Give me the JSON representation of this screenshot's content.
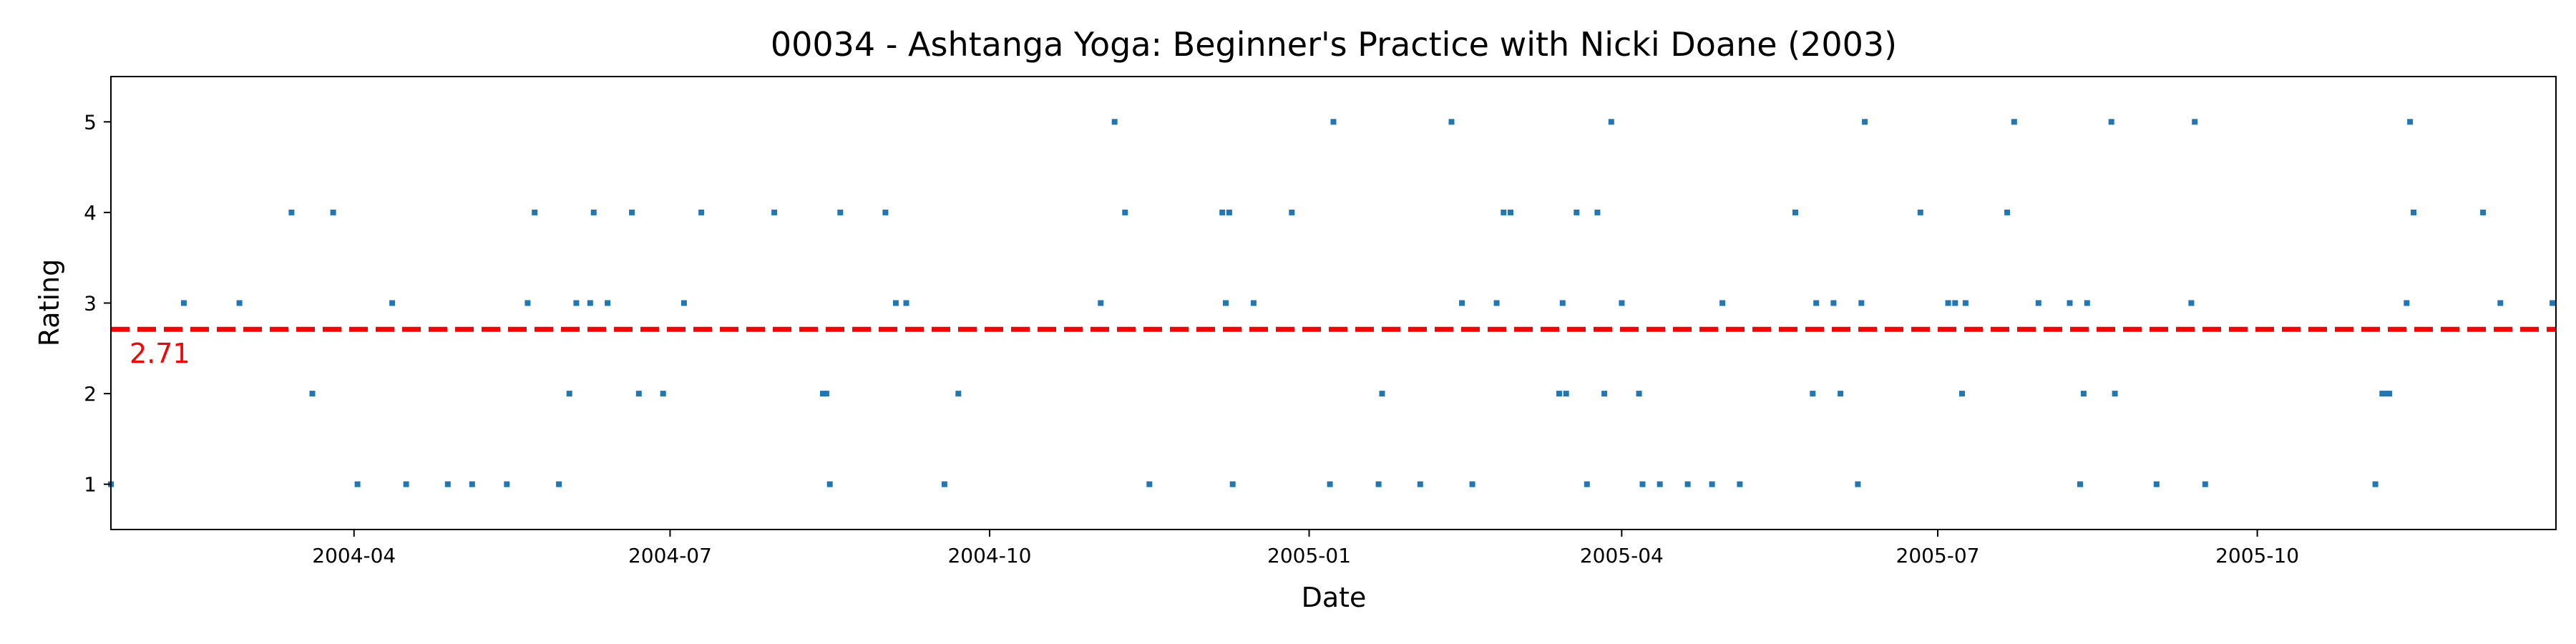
{
  "chart_data": {
    "type": "scatter",
    "title": "00034 - Ashtanga Yoga: Beginner's Practice with Nicki Doane (2003)",
    "xlabel": "Date",
    "ylabel": "Rating",
    "xlim": [
      "2004-01-22",
      "2005-12-26"
    ],
    "ylim": [
      0.5,
      5.5
    ],
    "x_ticks": [
      "2004-04",
      "2004-07",
      "2004-10",
      "2005-01",
      "2005-04",
      "2005-07",
      "2005-10"
    ],
    "y_ticks": [
      1,
      2,
      3,
      4,
      5
    ],
    "grid": false,
    "point_color": "#1f77b4",
    "mean_line": {
      "value": 2.71,
      "label": "2.71",
      "color": "#ff0000",
      "style": "dashed"
    },
    "series": [
      {
        "points": [
          {
            "x": "2004-01-22",
            "y": 1
          },
          {
            "x": "2004-02-12",
            "y": 3
          },
          {
            "x": "2004-02-28",
            "y": 3
          },
          {
            "x": "2004-03-14",
            "y": 4
          },
          {
            "x": "2004-03-20",
            "y": 2
          },
          {
            "x": "2004-03-26",
            "y": 4
          },
          {
            "x": "2004-04-02",
            "y": 1
          },
          {
            "x": "2004-04-12",
            "y": 3
          },
          {
            "x": "2004-04-16",
            "y": 1
          },
          {
            "x": "2004-04-28",
            "y": 1
          },
          {
            "x": "2004-05-05",
            "y": 1
          },
          {
            "x": "2004-05-15",
            "y": 1
          },
          {
            "x": "2004-05-21",
            "y": 3
          },
          {
            "x": "2004-05-23",
            "y": 4
          },
          {
            "x": "2004-05-30",
            "y": 1
          },
          {
            "x": "2004-06-02",
            "y": 2
          },
          {
            "x": "2004-06-04",
            "y": 3
          },
          {
            "x": "2004-06-08",
            "y": 3
          },
          {
            "x": "2004-06-09",
            "y": 4
          },
          {
            "x": "2004-06-13",
            "y": 3
          },
          {
            "x": "2004-06-20",
            "y": 4
          },
          {
            "x": "2004-06-22",
            "y": 2
          },
          {
            "x": "2004-06-29",
            "y": 2
          },
          {
            "x": "2004-07-05",
            "y": 3
          },
          {
            "x": "2004-07-10",
            "y": 4
          },
          {
            "x": "2004-07-31",
            "y": 4
          },
          {
            "x": "2004-08-14",
            "y": 2
          },
          {
            "x": "2004-08-15",
            "y": 2
          },
          {
            "x": "2004-08-16",
            "y": 1
          },
          {
            "x": "2004-08-19",
            "y": 4
          },
          {
            "x": "2004-09-01",
            "y": 4
          },
          {
            "x": "2004-09-04",
            "y": 3
          },
          {
            "x": "2004-09-07",
            "y": 3
          },
          {
            "x": "2004-09-18",
            "y": 1
          },
          {
            "x": "2004-09-22",
            "y": 2
          },
          {
            "x": "2004-11-02",
            "y": 3
          },
          {
            "x": "2004-11-06",
            "y": 5
          },
          {
            "x": "2004-11-09",
            "y": 4
          },
          {
            "x": "2004-11-16",
            "y": 1
          },
          {
            "x": "2004-12-07",
            "y": 4
          },
          {
            "x": "2004-12-08",
            "y": 3
          },
          {
            "x": "2004-12-09",
            "y": 4
          },
          {
            "x": "2004-12-10",
            "y": 1
          },
          {
            "x": "2004-12-16",
            "y": 3
          },
          {
            "x": "2004-12-27",
            "y": 4
          },
          {
            "x": "2005-01-07",
            "y": 1
          },
          {
            "x": "2005-01-08",
            "y": 5
          },
          {
            "x": "2005-01-21",
            "y": 1
          },
          {
            "x": "2005-01-22",
            "y": 2
          },
          {
            "x": "2005-02-02",
            "y": 1
          },
          {
            "x": "2005-02-11",
            "y": 5
          },
          {
            "x": "2005-02-14",
            "y": 3
          },
          {
            "x": "2005-02-17",
            "y": 1
          },
          {
            "x": "2005-02-24",
            "y": 3
          },
          {
            "x": "2005-02-26",
            "y": 4
          },
          {
            "x": "2005-02-28",
            "y": 4
          },
          {
            "x": "2005-03-14",
            "y": 2
          },
          {
            "x": "2005-03-15",
            "y": 3
          },
          {
            "x": "2005-03-16",
            "y": 2
          },
          {
            "x": "2005-03-19",
            "y": 4
          },
          {
            "x": "2005-03-22",
            "y": 1
          },
          {
            "x": "2005-03-25",
            "y": 4
          },
          {
            "x": "2005-03-27",
            "y": 2
          },
          {
            "x": "2005-03-29",
            "y": 5
          },
          {
            "x": "2005-04-01",
            "y": 3
          },
          {
            "x": "2005-04-06",
            "y": 2
          },
          {
            "x": "2005-04-07",
            "y": 1
          },
          {
            "x": "2005-04-12",
            "y": 1
          },
          {
            "x": "2005-04-20",
            "y": 1
          },
          {
            "x": "2005-04-27",
            "y": 1
          },
          {
            "x": "2005-04-30",
            "y": 3
          },
          {
            "x": "2005-05-05",
            "y": 1
          },
          {
            "x": "2005-05-21",
            "y": 4
          },
          {
            "x": "2005-05-26",
            "y": 2
          },
          {
            "x": "2005-05-27",
            "y": 3
          },
          {
            "x": "2005-06-01",
            "y": 3
          },
          {
            "x": "2005-06-03",
            "y": 2
          },
          {
            "x": "2005-06-08",
            "y": 1
          },
          {
            "x": "2005-06-09",
            "y": 3
          },
          {
            "x": "2005-06-10",
            "y": 5
          },
          {
            "x": "2005-06-26",
            "y": 4
          },
          {
            "x": "2005-07-04",
            "y": 3
          },
          {
            "x": "2005-07-06",
            "y": 3
          },
          {
            "x": "2005-07-08",
            "y": 2
          },
          {
            "x": "2005-07-09",
            "y": 3
          },
          {
            "x": "2005-07-21",
            "y": 4
          },
          {
            "x": "2005-07-23",
            "y": 5
          },
          {
            "x": "2005-07-30",
            "y": 3
          },
          {
            "x": "2005-08-08",
            "y": 3
          },
          {
            "x": "2005-08-11",
            "y": 1
          },
          {
            "x": "2005-08-12",
            "y": 2
          },
          {
            "x": "2005-08-13",
            "y": 3
          },
          {
            "x": "2005-08-20",
            "y": 5
          },
          {
            "x": "2005-08-21",
            "y": 2
          },
          {
            "x": "2005-09-02",
            "y": 1
          },
          {
            "x": "2005-09-12",
            "y": 3
          },
          {
            "x": "2005-09-13",
            "y": 5
          },
          {
            "x": "2005-09-16",
            "y": 1
          },
          {
            "x": "2005-11-04",
            "y": 1
          },
          {
            "x": "2005-11-06",
            "y": 2
          },
          {
            "x": "2005-11-07",
            "y": 2
          },
          {
            "x": "2005-11-08",
            "y": 2
          },
          {
            "x": "2005-11-13",
            "y": 3
          },
          {
            "x": "2005-11-14",
            "y": 5
          },
          {
            "x": "2005-11-15",
            "y": 4
          },
          {
            "x": "2005-12-05",
            "y": 4
          },
          {
            "x": "2005-12-10",
            "y": 3
          },
          {
            "x": "2005-12-25",
            "y": 3
          }
        ]
      }
    ]
  }
}
